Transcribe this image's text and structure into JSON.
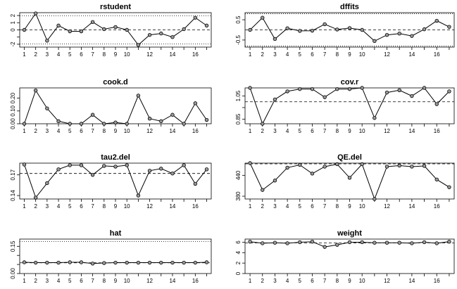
{
  "chart_data": [
    {
      "type": "line",
      "title": "rstudent",
      "x": [
        1,
        2,
        3,
        4,
        5,
        6,
        7,
        8,
        9,
        10,
        11,
        12,
        13,
        14,
        15,
        16,
        17
      ],
      "values": [
        0.0,
        2.3,
        -1.5,
        0.6,
        -0.2,
        -0.2,
        1.1,
        0.1,
        0.4,
        0.0,
        -2.1,
        -0.7,
        -0.5,
        -1.0,
        0.1,
        1.7,
        0.6
      ],
      "ylim": [
        -2.4,
        2.4
      ],
      "yticks": [
        -2,
        -1,
        0,
        1,
        2
      ],
      "ytick_labels": [
        "-2",
        "",
        "0",
        "1",
        "2"
      ],
      "xtick_labels": [
        "1",
        "2",
        "3",
        "4",
        "5",
        "6",
        "7",
        "8",
        "9",
        "10",
        "",
        "12",
        "",
        "14",
        "",
        "16",
        ""
      ],
      "hlines": [
        {
          "y": 0,
          "style": "dashed"
        },
        {
          "y": 1.96,
          "style": "dotted"
        },
        {
          "y": -1.96,
          "style": "dotted"
        }
      ]
    },
    {
      "type": "line",
      "title": "dffits",
      "x": [
        1,
        2,
        3,
        4,
        5,
        6,
        7,
        8,
        9,
        10,
        11,
        12,
        13,
        14,
        15,
        16,
        17
      ],
      "values": [
        0.0,
        0.6,
        -0.45,
        0.08,
        -0.05,
        -0.04,
        0.28,
        0.02,
        0.09,
        0.0,
        -0.55,
        -0.25,
        -0.18,
        -0.3,
        0.03,
        0.45,
        0.15
      ],
      "ylim": [
        -0.85,
        0.85
      ],
      "yticks": [
        -0.5,
        0.5
      ],
      "ytick_labels": [
        "-0.5",
        "0.5"
      ],
      "xtick_labels": [
        "1",
        "2",
        "3",
        "4",
        "5",
        "6",
        "7",
        "8",
        "9",
        "10",
        "",
        "12",
        "",
        "14",
        "",
        "16",
        ""
      ],
      "hlines": [
        {
          "y": 0,
          "style": "dashed"
        },
        {
          "y": 0.8,
          "style": "dotted"
        },
        {
          "y": -0.8,
          "style": "dotted"
        }
      ]
    },
    {
      "type": "line",
      "title": "cook.d",
      "x": [
        1,
        2,
        3,
        4,
        5,
        6,
        7,
        8,
        9,
        10,
        11,
        12,
        13,
        14,
        15,
        16,
        17
      ],
      "values": [
        0.0,
        0.26,
        0.12,
        0.02,
        0.0,
        0.0,
        0.07,
        0.0,
        0.01,
        0.0,
        0.22,
        0.04,
        0.02,
        0.07,
        0.0,
        0.16,
        0.03
      ],
      "ylim": [
        0.0,
        0.28
      ],
      "yticks": [
        0.0,
        0.1,
        0.2
      ],
      "ytick_labels": [
        "0.00",
        "0.10",
        "0.20"
      ],
      "xtick_labels": [
        "1",
        "2",
        "3",
        "4",
        "5",
        "6",
        "7",
        "8",
        "9",
        "10",
        "",
        "12",
        "",
        "14",
        "",
        "16",
        ""
      ],
      "hlines": []
    },
    {
      "type": "line",
      "title": "cov.r",
      "x": [
        1,
        2,
        3,
        4,
        5,
        6,
        7,
        8,
        9,
        10,
        11,
        12,
        13,
        14,
        15,
        16,
        17
      ],
      "values": [
        1.12,
        0.81,
        1.02,
        1.09,
        1.11,
        1.11,
        1.04,
        1.11,
        1.11,
        1.12,
        0.86,
        1.08,
        1.1,
        1.05,
        1.12,
        0.98,
        1.09
      ],
      "ylim": [
        0.81,
        1.12
      ],
      "yticks": [
        0.85,
        0.95,
        1.05
      ],
      "ytick_labels": [
        "0.85",
        "",
        "1.05"
      ],
      "xtick_labels": [
        "1",
        "2",
        "3",
        "4",
        "5",
        "6",
        "7",
        "8",
        "9",
        "10",
        "",
        "12",
        "",
        "14",
        "",
        "16",
        ""
      ],
      "hlines": [
        {
          "y": 1.0,
          "style": "dashed"
        }
      ]
    },
    {
      "type": "line",
      "title": "tau2.del",
      "x": [
        1,
        2,
        3,
        4,
        5,
        6,
        7,
        8,
        9,
        10,
        11,
        12,
        13,
        14,
        15,
        16,
        17
      ],
      "values": [
        0.185,
        0.137,
        0.158,
        0.178,
        0.184,
        0.184,
        0.17,
        0.183,
        0.182,
        0.184,
        0.14,
        0.176,
        0.179,
        0.172,
        0.184,
        0.157,
        0.178
      ],
      "ylim": [
        0.135,
        0.187
      ],
      "yticks": [
        0.14,
        0.17
      ],
      "ytick_labels": [
        "0.14",
        "0.17"
      ],
      "xtick_labels": [
        "1",
        "2",
        "3",
        "4",
        "5",
        "6",
        "7",
        "8",
        "9",
        "10",
        "",
        "12",
        "",
        "14",
        "",
        "16",
        ""
      ],
      "hlines": [
        {
          "y": 0.172,
          "style": "dashed"
        }
      ]
    },
    {
      "type": "line",
      "title": "QE.del",
      "x": [
        1,
        2,
        3,
        4,
        5,
        6,
        7,
        8,
        9,
        10,
        11,
        12,
        13,
        14,
        15,
        16,
        17
      ],
      "values": [
        475,
        398,
        425,
        462,
        470,
        445,
        465,
        472,
        433,
        472,
        372,
        465,
        468,
        465,
        467,
        428,
        406
      ],
      "ylim": [
        372,
        475
      ],
      "yticks": [
        380,
        440
      ],
      "ytick_labels": [
        "380",
        "440"
      ],
      "xtick_labels": [
        "1",
        "2",
        "3",
        "4",
        "5",
        "6",
        "7",
        "8",
        "9",
        "10",
        "",
        "12",
        "",
        "14",
        "",
        "16",
        ""
      ],
      "hlines": [
        {
          "y": 473,
          "style": "dashed"
        }
      ]
    },
    {
      "type": "line",
      "title": "hat",
      "x": [
        1,
        2,
        3,
        4,
        5,
        6,
        7,
        8,
        9,
        10,
        11,
        12,
        13,
        14,
        15,
        16,
        17
      ],
      "values": [
        0.062,
        0.06,
        0.06,
        0.06,
        0.062,
        0.062,
        0.055,
        0.058,
        0.06,
        0.06,
        0.06,
        0.06,
        0.06,
        0.06,
        0.06,
        0.06,
        0.062
      ],
      "ylim": [
        0.0,
        0.19
      ],
      "yticks": [
        0.0,
        0.05,
        0.1,
        0.15
      ],
      "ytick_labels": [
        "0.00",
        "",
        "",
        "0.15"
      ],
      "xtick_labels": [
        "1",
        "2",
        "3",
        "4",
        "5",
        "6",
        "7",
        "8",
        "9",
        "10",
        "",
        "12",
        "",
        "14",
        "",
        "16",
        ""
      ],
      "hlines": [
        {
          "y": 0.059,
          "style": "dashed"
        },
        {
          "y": 0.176,
          "style": "dotted"
        }
      ]
    },
    {
      "type": "line",
      "title": "weight",
      "x": [
        1,
        2,
        3,
        4,
        5,
        6,
        7,
        8,
        9,
        10,
        11,
        12,
        13,
        14,
        15,
        16,
        17
      ],
      "values": [
        6.1,
        5.8,
        5.9,
        5.8,
        6.0,
        6.1,
        5.1,
        5.5,
        6.0,
        6.0,
        5.9,
        5.9,
        5.9,
        5.8,
        6.0,
        5.8,
        6.1
      ],
      "ylim": [
        0.0,
        6.6
      ],
      "yticks": [
        0,
        2,
        4,
        6
      ],
      "ytick_labels": [
        "0",
        "2",
        "4",
        "6"
      ],
      "xtick_labels": [
        "1",
        "2",
        "3",
        "4",
        "5",
        "6",
        "7",
        "8",
        "9",
        "10",
        "",
        "12",
        "",
        "14",
        "",
        "16",
        ""
      ],
      "hlines": [
        {
          "y": 5.88,
          "style": "dashed"
        }
      ]
    }
  ]
}
